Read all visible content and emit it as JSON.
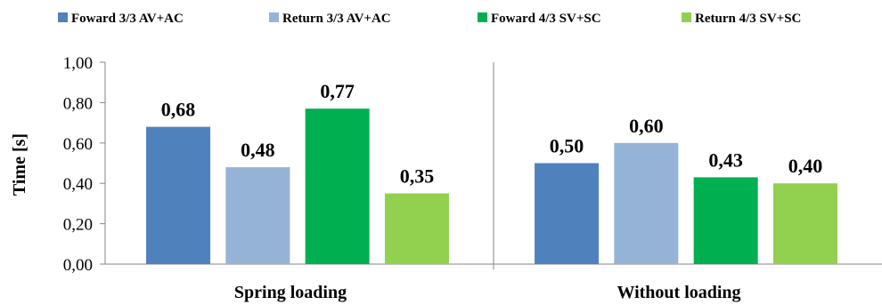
{
  "chart_data": {
    "type": "bar",
    "categories": [
      "Spring loading",
      "Without loading"
    ],
    "series": [
      {
        "name": "Foward 3/3 AV+AC",
        "values": [
          0.68,
          0.5
        ],
        "labels": [
          "0,68",
          "0,50"
        ],
        "color": "#4f81bd"
      },
      {
        "name": "Return 3/3 AV+AC",
        "values": [
          0.48,
          0.6
        ],
        "labels": [
          "0,48",
          "0,60"
        ],
        "color": "#95b3d7"
      },
      {
        "name": "Foward 4/3 SV+SC",
        "values": [
          0.77,
          0.43
        ],
        "labels": [
          "0,77",
          "0,43"
        ],
        "color": "#00b050"
      },
      {
        "name": "Return 4/3 SV+SC",
        "values": [
          0.35,
          0.4
        ],
        "labels": [
          "0,35",
          "0,40"
        ],
        "color": "#92d050"
      }
    ],
    "ylabel": "Time [s]",
    "xlabel": "",
    "ylim": [
      0,
      1
    ],
    "yticks": [
      0,
      0.2,
      0.4,
      0.6,
      0.8,
      1.0
    ],
    "ytick_labels": [
      "0,00",
      "0,20",
      "0,40",
      "0,60",
      "0,80",
      "1,00"
    ],
    "legend_position": "top",
    "grid": false
  }
}
